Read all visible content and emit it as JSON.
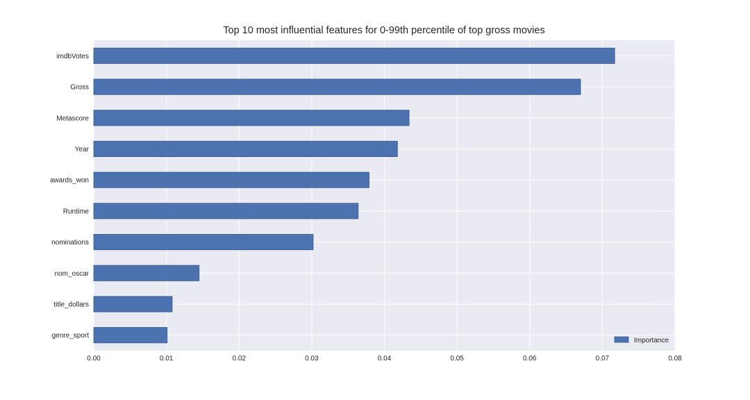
{
  "chart_data": {
    "type": "bar",
    "orientation": "horizontal",
    "title": "Top 10 most influential features for 0-99th percentile of top gross movies",
    "xlabel": "",
    "ylabel": "",
    "categories": [
      "imdbVotes",
      "Gross",
      "Metascore",
      "Year",
      "awards_won",
      "Runtime",
      "nominations",
      "nom_oscar",
      "title_dollars",
      "genre_sport"
    ],
    "series": [
      {
        "name": "Importance",
        "values": [
          0.0717,
          0.067,
          0.0434,
          0.0418,
          0.0379,
          0.0364,
          0.0302,
          0.0145,
          0.0108,
          0.0101
        ]
      }
    ],
    "xlim": [
      0,
      0.08
    ],
    "xticks": [
      "0.00",
      "0.01",
      "0.02",
      "0.03",
      "0.04",
      "0.05",
      "0.06",
      "0.07",
      "0.08"
    ],
    "grid": true,
    "legend_position": "bottom-right",
    "colors": {
      "bar": "#4c72b0",
      "bar_edge": "#3a5a8c",
      "plot_background": "#eaeaf2",
      "grid": "#ffffff"
    }
  }
}
